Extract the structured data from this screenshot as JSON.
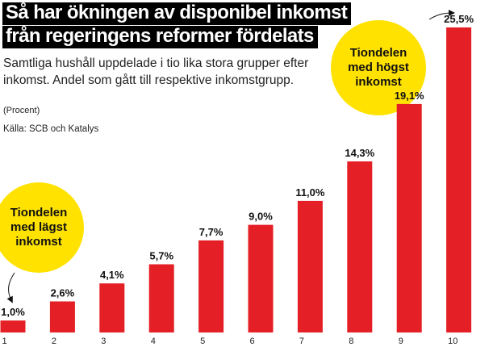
{
  "chart_data": {
    "type": "bar",
    "title_lines": [
      "Så har ökningen av disponibel inkomst",
      "från regeringens reformer fördelats"
    ],
    "subtitle": "Samtliga hushåll uppdelade i tio lika stora grupper efter inkomst. Andel som gått till respektive inkomstgrupp.",
    "unit": "(Procent)",
    "source": "Källa: SCB och Katalys",
    "categories": [
      "1",
      "2",
      "3",
      "4",
      "5",
      "6",
      "7",
      "8",
      "9",
      "10"
    ],
    "values": [
      1.0,
      2.6,
      4.1,
      5.7,
      7.7,
      9.0,
      11.0,
      14.3,
      19.1,
      25.5
    ],
    "value_labels": [
      "1,0%",
      "2,6%",
      "4,1%",
      "5,7%",
      "7,7%",
      "9,0%",
      "11,0%",
      "14,3%",
      "19,1%",
      "25,5%"
    ],
    "ylim": [
      0,
      25.5
    ],
    "grid": false,
    "bar_color": "#e41f25",
    "annotations": {
      "low": "Tiondelen\nmed lägst\ninkomst",
      "high": "Tiondelen\nmed högst\ninkomst"
    },
    "annotation_color": "#ffe200"
  }
}
